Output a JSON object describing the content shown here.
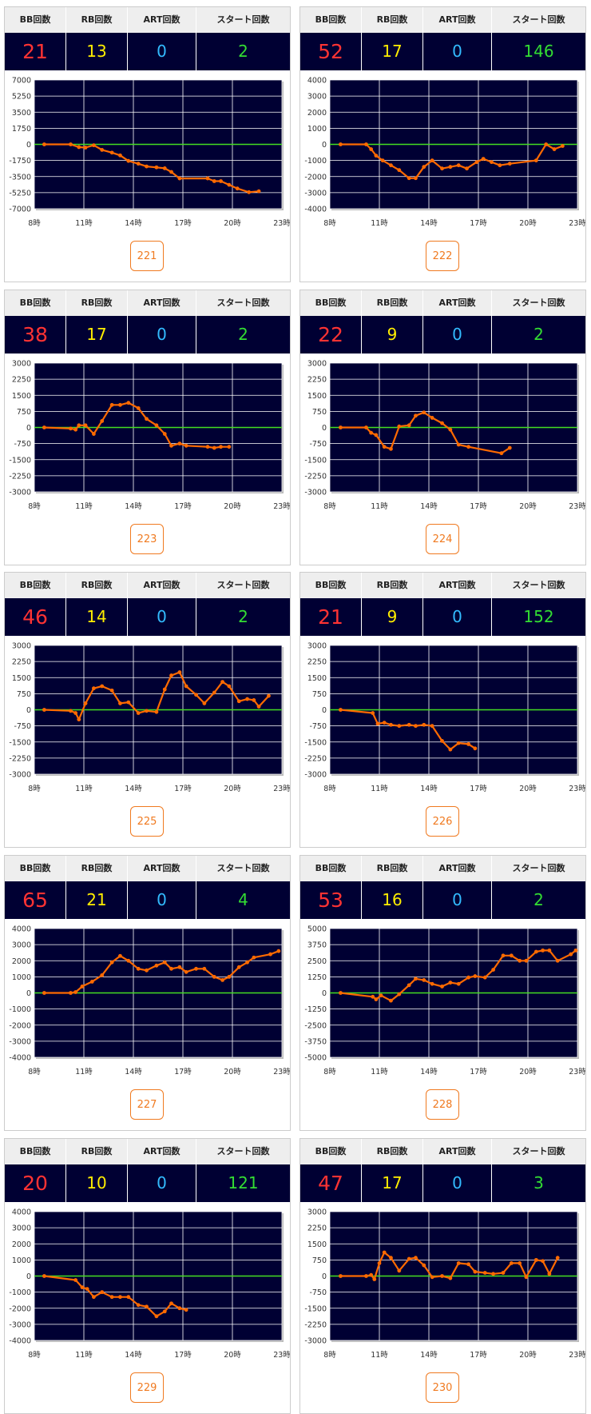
{
  "headers": [
    "BB回数",
    "RB回数",
    "ART回数",
    "スタート回数"
  ],
  "panels": [
    {
      "stats": [
        21,
        13,
        0,
        2
      ],
      "button": "221"
    },
    {
      "stats": [
        52,
        17,
        0,
        146
      ],
      "button": "222"
    },
    {
      "stats": [
        38,
        17,
        0,
        2
      ],
      "button": "223"
    },
    {
      "stats": [
        22,
        9,
        0,
        2
      ],
      "button": "224"
    },
    {
      "stats": [
        46,
        14,
        0,
        2
      ],
      "button": "225"
    },
    {
      "stats": [
        21,
        9,
        0,
        152
      ],
      "button": "226"
    },
    {
      "stats": [
        65,
        21,
        0,
        4
      ],
      "button": "227"
    },
    {
      "stats": [
        53,
        16,
        0,
        2
      ],
      "button": "228"
    },
    {
      "stats": [
        20,
        10,
        0,
        121
      ],
      "button": "229"
    },
    {
      "stats": [
        47,
        17,
        0,
        3
      ],
      "button": "230"
    }
  ],
  "chart_data": [
    {
      "type": "line",
      "color": "#ff6a00",
      "grid": true,
      "xlim": [
        8,
        23
      ],
      "xticks": [
        {
          "value": 8,
          "label": "8時"
        },
        {
          "value": 11,
          "label": "11時"
        },
        {
          "value": 14,
          "label": "14時"
        },
        {
          "value": 17,
          "label": "17時"
        },
        {
          "value": 20,
          "label": "20時"
        },
        {
          "value": 23,
          "label": "23時"
        }
      ],
      "ylim": [
        -7000,
        7000
      ],
      "yticks": [
        -7000,
        -5250,
        -3500,
        -1750,
        0,
        1750,
        3500,
        5250,
        7000
      ],
      "x": [
        8.6,
        10.2,
        10.7,
        11.1,
        11.6,
        12.1,
        12.7,
        13.2,
        13.7,
        14.3,
        14.8,
        15.4,
        15.9,
        16.3,
        16.8,
        18.5,
        18.9,
        19.3,
        19.8,
        20.3,
        21.0,
        21.6
      ],
      "values": [
        0,
        0,
        -300,
        -350,
        -100,
        -600,
        -900,
        -1200,
        -1800,
        -2100,
        -2400,
        -2500,
        -2600,
        -3000,
        -3700,
        -3700,
        -4000,
        -4000,
        -4400,
        -4800,
        -5200,
        -5100
      ]
    },
    {
      "type": "line",
      "color": "#ff6a00",
      "grid": true,
      "xlim": [
        8,
        23
      ],
      "xticks": [
        {
          "value": 8,
          "label": "8時"
        },
        {
          "value": 11,
          "label": "11時"
        },
        {
          "value": 14,
          "label": "14時"
        },
        {
          "value": 17,
          "label": "17時"
        },
        {
          "value": 20,
          "label": "20時"
        },
        {
          "value": 23,
          "label": "23時"
        }
      ],
      "ylim": [
        -4000,
        4000
      ],
      "yticks": [
        -4000,
        -3000,
        -2000,
        -1000,
        0,
        1000,
        2000,
        3000,
        4000
      ],
      "x": [
        8.65,
        10.2,
        10.5,
        10.8,
        11.2,
        11.7,
        12.2,
        12.8,
        13.2,
        13.7,
        14.2,
        14.8,
        15.3,
        15.8,
        16.3,
        16.9,
        17.3,
        17.8,
        18.3,
        18.9,
        20.5,
        21.1,
        21.6,
        22.1
      ],
      "values": [
        0,
        0,
        -300,
        -700,
        -1000,
        -1300,
        -1600,
        -2100,
        -2100,
        -1400,
        -1000,
        -1500,
        -1400,
        -1300,
        -1500,
        -1100,
        -900,
        -1100,
        -1300,
        -1200,
        -1000,
        0,
        -300,
        -100
      ]
    },
    {
      "type": "line",
      "color": "#ff6a00",
      "grid": true,
      "xlim": [
        8,
        23
      ],
      "xticks": [
        {
          "value": 8,
          "label": "8時"
        },
        {
          "value": 11,
          "label": "11時"
        },
        {
          "value": 14,
          "label": "14時"
        },
        {
          "value": 17,
          "label": "17時"
        },
        {
          "value": 20,
          "label": "20時"
        },
        {
          "value": 23,
          "label": "23時"
        }
      ],
      "ylim": [
        -3000,
        3000
      ],
      "yticks": [
        -3000,
        -2250,
        -1500,
        -750,
        0,
        750,
        1500,
        2250,
        3000
      ],
      "x": [
        8.6,
        10.2,
        10.5,
        10.7,
        11.1,
        11.6,
        12.1,
        12.7,
        13.2,
        13.7,
        14.3,
        14.8,
        15.4,
        15.9,
        16.3,
        16.8,
        17.2,
        18.5,
        18.9,
        19.3,
        19.8
      ],
      "values": [
        0,
        -50,
        -100,
        100,
        100,
        -300,
        300,
        1050,
        1050,
        1150,
        900,
        400,
        100,
        -300,
        -850,
        -750,
        -850,
        -900,
        -950,
        -900,
        -900
      ]
    },
    {
      "type": "line",
      "color": "#ff6a00",
      "grid": true,
      "xlim": [
        8,
        23
      ],
      "xticks": [
        {
          "value": 8,
          "label": "8時"
        },
        {
          "value": 11,
          "label": "11時"
        },
        {
          "value": 14,
          "label": "14時"
        },
        {
          "value": 17,
          "label": "17時"
        },
        {
          "value": 20,
          "label": "20時"
        },
        {
          "value": 23,
          "label": "23時"
        }
      ],
      "ylim": [
        -3000,
        3000
      ],
      "yticks": [
        -3000,
        -2250,
        -1500,
        -750,
        0,
        750,
        1500,
        2250,
        3000
      ],
      "x": [
        8.65,
        10.2,
        10.5,
        10.8,
        11.3,
        11.7,
        12.2,
        12.8,
        13.2,
        13.7,
        14.2,
        14.8,
        15.3,
        15.8,
        16.4,
        18.4,
        18.9
      ],
      "values": [
        0,
        0,
        -250,
        -350,
        -900,
        -1000,
        50,
        100,
        550,
        700,
        450,
        200,
        -100,
        -800,
        -900,
        -1200,
        -950
      ]
    },
    {
      "type": "line",
      "color": "#ff6a00",
      "grid": true,
      "xlim": [
        8,
        23
      ],
      "xticks": [
        {
          "value": 8,
          "label": "8時"
        },
        {
          "value": 11,
          "label": "11時"
        },
        {
          "value": 14,
          "label": "14時"
        },
        {
          "value": 17,
          "label": "17時"
        },
        {
          "value": 20,
          "label": "20時"
        },
        {
          "value": 23,
          "label": "23時"
        }
      ],
      "ylim": [
        -3000,
        3000
      ],
      "yticks": [
        -3000,
        -2250,
        -1500,
        -750,
        0,
        750,
        1500,
        2250,
        3000
      ],
      "x": [
        8.6,
        10.2,
        10.5,
        10.7,
        11.1,
        11.6,
        12.1,
        12.7,
        13.2,
        13.7,
        14.3,
        14.8,
        15.4,
        15.9,
        16.3,
        16.8,
        17.2,
        17.8,
        18.3,
        18.9,
        19.4,
        19.8,
        20.4,
        20.9,
        21.3,
        21.6,
        22.2
      ],
      "values": [
        0,
        -50,
        -150,
        -450,
        300,
        1000,
        1100,
        900,
        300,
        350,
        -150,
        -50,
        -100,
        950,
        1600,
        1750,
        1100,
        700,
        300,
        800,
        1300,
        1100,
        400,
        500,
        450,
        150,
        650
      ]
    },
    {
      "type": "line",
      "color": "#ff6a00",
      "grid": true,
      "xlim": [
        8,
        23
      ],
      "xticks": [
        {
          "value": 8,
          "label": "8時"
        },
        {
          "value": 11,
          "label": "11時"
        },
        {
          "value": 14,
          "label": "14時"
        },
        {
          "value": 17,
          "label": "17時"
        },
        {
          "value": 20,
          "label": "20時"
        },
        {
          "value": 23,
          "label": "23時"
        }
      ],
      "ylim": [
        -3000,
        3000
      ],
      "yticks": [
        -3000,
        -2250,
        -1500,
        -750,
        0,
        750,
        1500,
        2250,
        3000
      ],
      "x": [
        8.65,
        10.6,
        10.9,
        11.3,
        11.7,
        12.2,
        12.8,
        13.2,
        13.7,
        14.2,
        14.8,
        15.3,
        15.8,
        16.4,
        16.8
      ],
      "values": [
        0,
        -150,
        -650,
        -600,
        -700,
        -750,
        -700,
        -750,
        -700,
        -750,
        -1450,
        -1850,
        -1550,
        -1600,
        -1800
      ]
    },
    {
      "type": "line",
      "color": "#ff6a00",
      "grid": true,
      "xlim": [
        8,
        23
      ],
      "xticks": [
        {
          "value": 8,
          "label": "8時"
        },
        {
          "value": 11,
          "label": "11時"
        },
        {
          "value": 14,
          "label": "14時"
        },
        {
          "value": 17,
          "label": "17時"
        },
        {
          "value": 20,
          "label": "20時"
        },
        {
          "value": 23,
          "label": "23時"
        }
      ],
      "ylim": [
        -4000,
        4000
      ],
      "yticks": [
        -4000,
        -3000,
        -2000,
        -1000,
        0,
        1000,
        2000,
        3000,
        4000
      ],
      "x": [
        8.6,
        10.2,
        10.5,
        10.9,
        11.5,
        12.1,
        12.7,
        13.2,
        13.7,
        14.3,
        14.8,
        15.4,
        15.9,
        16.3,
        16.8,
        17.2,
        17.8,
        18.3,
        18.9,
        19.4,
        19.8,
        20.4,
        20.9,
        21.3,
        22.3,
        22.8
      ],
      "values": [
        0,
        0,
        50,
        400,
        700,
        1100,
        1900,
        2300,
        2000,
        1500,
        1400,
        1700,
        1900,
        1500,
        1600,
        1300,
        1500,
        1500,
        1000,
        800,
        1000,
        1600,
        1900,
        2200,
        2400,
        2600
      ]
    },
    {
      "type": "line",
      "color": "#ff6a00",
      "grid": true,
      "xlim": [
        8,
        23
      ],
      "xticks": [
        {
          "value": 8,
          "label": "8時"
        },
        {
          "value": 11,
          "label": "11時"
        },
        {
          "value": 14,
          "label": "14時"
        },
        {
          "value": 17,
          "label": "17時"
        },
        {
          "value": 20,
          "label": "20時"
        },
        {
          "value": 23,
          "label": "23時"
        }
      ],
      "ylim": [
        -5000,
        5000
      ],
      "yticks": [
        -5000,
        -3750,
        -2500,
        -1250,
        0,
        1250,
        2500,
        3750,
        5000
      ],
      "x": [
        8.65,
        10.6,
        10.8,
        11.1,
        11.7,
        12.2,
        12.8,
        13.2,
        13.7,
        14.2,
        14.8,
        15.3,
        15.8,
        16.4,
        16.8,
        17.4,
        17.9,
        18.5,
        19.0,
        19.5,
        19.9,
        20.5,
        20.9,
        21.3,
        21.8,
        22.6,
        22.9
      ],
      "values": [
        0,
        -300,
        -500,
        -200,
        -600,
        -100,
        600,
        1100,
        1000,
        700,
        500,
        800,
        700,
        1200,
        1300,
        1200,
        1800,
        2900,
        2900,
        2500,
        2500,
        3200,
        3300,
        3300,
        2500,
        3000,
        3300
      ]
    },
    {
      "type": "line",
      "color": "#ff6a00",
      "grid": true,
      "xlim": [
        8,
        23
      ],
      "xticks": [
        {
          "value": 8,
          "label": "8時"
        },
        {
          "value": 11,
          "label": "11時"
        },
        {
          "value": 14,
          "label": "14時"
        },
        {
          "value": 17,
          "label": "17時"
        },
        {
          "value": 20,
          "label": "20時"
        },
        {
          "value": 23,
          "label": "23時"
        }
      ],
      "ylim": [
        -4000,
        4000
      ],
      "yticks": [
        -4000,
        -3000,
        -2000,
        -1000,
        0,
        1000,
        2000,
        3000,
        4000
      ],
      "x": [
        8.6,
        10.5,
        10.9,
        11.2,
        11.6,
        12.1,
        12.7,
        13.2,
        13.7,
        14.3,
        14.8,
        15.4,
        15.9,
        16.3,
        16.8,
        17.2
      ],
      "values": [
        0,
        -250,
        -700,
        -800,
        -1300,
        -1000,
        -1300,
        -1300,
        -1300,
        -1800,
        -1900,
        -2500,
        -2200,
        -1700,
        -2000,
        -2100
      ]
    },
    {
      "type": "line",
      "color": "#ff6a00",
      "grid": true,
      "xlim": [
        8,
        23
      ],
      "xticks": [
        {
          "value": 8,
          "label": "8時"
        },
        {
          "value": 11,
          "label": "11時"
        },
        {
          "value": 14,
          "label": "14時"
        },
        {
          "value": 17,
          "label": "17時"
        },
        {
          "value": 20,
          "label": "20時"
        },
        {
          "value": 23,
          "label": "23時"
        }
      ],
      "ylim": [
        -3000,
        3000
      ],
      "yticks": [
        -3000,
        -2250,
        -1500,
        -750,
        0,
        750,
        1500,
        2250,
        3000
      ],
      "x": [
        8.65,
        10.2,
        10.5,
        10.7,
        11.0,
        11.3,
        11.7,
        12.2,
        12.8,
        13.2,
        13.7,
        14.2,
        14.8,
        15.3,
        15.8,
        16.4,
        16.8,
        17.4,
        17.9,
        18.5,
        19.0,
        19.5,
        19.9,
        20.5,
        20.9,
        21.3,
        21.8
      ],
      "values": [
        0,
        0,
        50,
        -150,
        600,
        1100,
        850,
        250,
        800,
        850,
        500,
        -50,
        0,
        -100,
        600,
        550,
        200,
        150,
        100,
        150,
        600,
        600,
        -50,
        750,
        700,
        100,
        850
      ]
    }
  ]
}
